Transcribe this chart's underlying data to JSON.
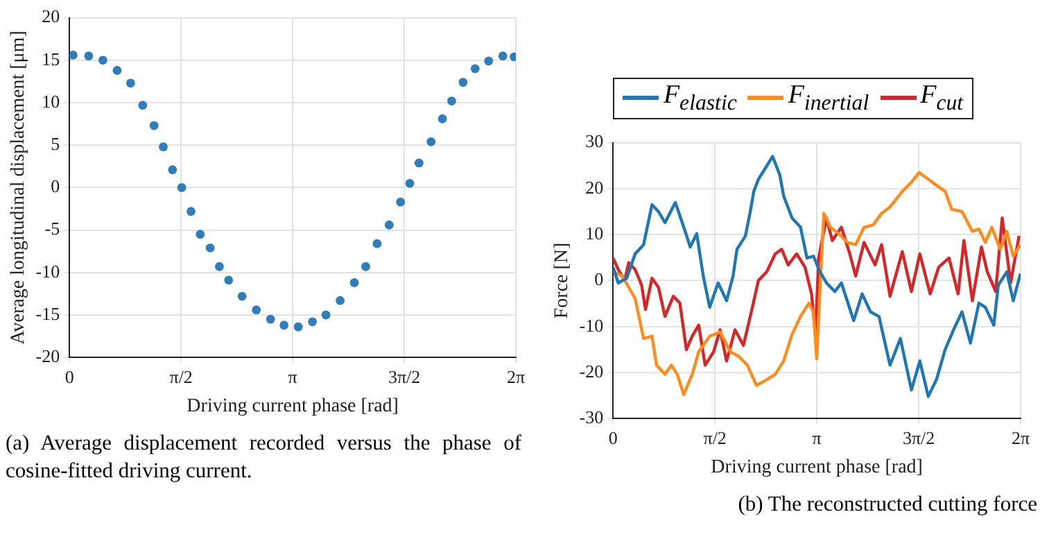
{
  "chart_data": [
    {
      "type": "scatter",
      "xlabel": "Driving current phase [rad]",
      "ylabel": "Average longitudinal displacement [μm]",
      "color": "#2e7ebc",
      "marker": "circle",
      "grid": true,
      "xlim": [
        0,
        6.2832
      ],
      "xticks": [
        0,
        {
          "value": 1.5708,
          "label": "π/2"
        },
        {
          "value": 3.1416,
          "label": "π"
        },
        {
          "value": 4.7124,
          "label": "3π/2"
        },
        {
          "value": 6.2832,
          "label": "2π"
        }
      ],
      "ylim": [
        -20,
        20
      ],
      "yticks": [
        -20,
        -15,
        -10,
        -5,
        0,
        5,
        10,
        15,
        20
      ],
      "x": [
        0.05,
        0.27,
        0.47,
        0.67,
        0.86,
        1.03,
        1.19,
        1.32,
        1.45,
        1.58,
        1.71,
        1.84,
        1.98,
        2.11,
        2.24,
        2.43,
        2.63,
        2.83,
        3.02,
        3.22,
        3.42,
        3.61,
        3.81,
        4.01,
        4.17,
        4.33,
        4.5,
        4.66,
        4.79,
        4.92,
        5.09,
        5.25,
        5.38,
        5.54,
        5.71,
        5.9,
        6.1,
        6.26
      ],
      "values": [
        15.6,
        15.5,
        15.0,
        13.8,
        12.3,
        9.7,
        7.3,
        4.8,
        2.1,
        0,
        -2.8,
        -5.5,
        -7.1,
        -9.3,
        -10.9,
        -12.8,
        -14.4,
        -15.5,
        -16.2,
        -16.4,
        -15.8,
        -15.0,
        -13.3,
        -11.2,
        -9.3,
        -6.6,
        -4.4,
        -1.7,
        0.5,
        2.9,
        5.4,
        8.1,
        10.2,
        12.4,
        14.0,
        14.9,
        15.5,
        15.4
      ],
      "annotations": [
        "(a) Average displacement recorded versus the phase of cosine-fitted driving current."
      ]
    },
    {
      "type": "line",
      "xlabel": "Driving current phase [rad]",
      "ylabel": "Force [N]",
      "grid": true,
      "legend": "top",
      "marker": "none",
      "xlim": [
        0,
        6.2832
      ],
      "xticks": [
        0,
        {
          "value": 1.5708,
          "label": "π/2"
        },
        {
          "value": 3.1416,
          "label": "π"
        },
        {
          "value": 4.7124,
          "label": "3π/2"
        },
        {
          "value": 6.2832,
          "label": "2π"
        }
      ],
      "ylim": [
        -30,
        30
      ],
      "yticks": [
        -30,
        -20,
        -10,
        0,
        10,
        20,
        30
      ],
      "series": [
        {
          "name": "F$_{elastic}$",
          "color": "#1f77b4",
          "x": [
            0,
            0.08,
            0.21,
            0.34,
            0.47,
            0.6,
            0.7,
            0.8,
            0.96,
            1.09,
            1.19,
            1.29,
            1.39,
            1.49,
            1.62,
            1.75,
            1.85,
            1.91,
            2.04,
            2.11,
            2.17,
            2.24,
            2.46,
            2.57,
            2.63,
            2.76,
            2.89,
            2.99,
            3.09,
            3.19,
            3.29,
            3.42,
            3.52,
            3.71,
            3.84,
            3.97,
            4.1,
            4.27,
            4.43,
            4.6,
            4.73,
            4.86,
            4.99,
            5.12,
            5.25,
            5.38,
            5.51,
            5.64,
            5.74,
            5.87,
            5.94,
            6.07,
            6.17,
            6.28
          ],
          "values": [
            2.9,
            -0.5,
            0.5,
            5.8,
            7.8,
            16.5,
            15,
            12.6,
            17,
            11.6,
            7.3,
            10.2,
            1,
            -5.8,
            -0.5,
            -4.4,
            1,
            6.8,
            9.7,
            14.6,
            19.4,
            22,
            27,
            23,
            18.4,
            13.6,
            11.6,
            4.9,
            5.3,
            1.9,
            -0.5,
            -2.4,
            -0.5,
            -8.7,
            -2.9,
            -6.8,
            -7.8,
            -18.4,
            -12.6,
            -23.8,
            -17.5,
            -25.2,
            -21.4,
            -15,
            -10.7,
            -6.8,
            -13.6,
            -4.9,
            -5.8,
            -9.7,
            -1,
            1.9,
            -4.4,
            1.5
          ]
        },
        {
          "name": "F$_{inertial}$",
          "color": "#ff8c1a",
          "x": [
            0,
            0.14,
            0.34,
            0.47,
            0.6,
            0.67,
            0.8,
            0.9,
            0.99,
            1.09,
            1.22,
            1.32,
            1.49,
            1.65,
            1.81,
            1.94,
            2.07,
            2.21,
            2.34,
            2.5,
            2.63,
            2.76,
            2.89,
            3.02,
            3.09,
            3.14,
            3.19,
            3.25,
            3.35,
            3.48,
            3.61,
            3.74,
            3.87,
            4.01,
            4.14,
            4.27,
            4.46,
            4.6,
            4.72,
            4.92,
            5.12,
            5.22,
            5.38,
            5.54,
            5.64,
            5.74,
            5.84,
            5.97,
            6.07,
            6.17,
            6.28
          ],
          "values": [
            1.9,
            1,
            -3.9,
            -12.6,
            -12.1,
            -18.4,
            -20.4,
            -18.4,
            -20.4,
            -24.8,
            -20.4,
            -15.5,
            -12.1,
            -11.2,
            -15.5,
            -16.5,
            -18.4,
            -22.8,
            -21.8,
            -20.4,
            -17.5,
            -11.7,
            -7.8,
            -4.9,
            -6.8,
            -17,
            -1.9,
            14.6,
            11.6,
            10.2,
            8.3,
            7.8,
            11.6,
            12.1,
            14.6,
            16,
            19.4,
            21.4,
            23.5,
            21.4,
            19.4,
            15.5,
            15,
            10.7,
            11.2,
            8.3,
            11.6,
            6.8,
            10.7,
            5.3,
            7.8
          ]
        },
        {
          "name": "F$_{cut}$",
          "color": "#d62728",
          "x": [
            0,
            0.08,
            0.18,
            0.24,
            0.34,
            0.44,
            0.5,
            0.6,
            0.7,
            0.8,
            0.93,
            1.03,
            1.13,
            1.22,
            1.32,
            1.42,
            1.55,
            1.65,
            1.75,
            1.88,
            2.01,
            2.14,
            2.24,
            2.37,
            2.5,
            2.6,
            2.7,
            2.83,
            2.96,
            3.06,
            3.12,
            3.17,
            3.29,
            3.38,
            3.52,
            3.65,
            3.74,
            3.87,
            4.04,
            4.14,
            4.27,
            4.46,
            4.6,
            4.73,
            4.89,
            5.02,
            5.18,
            5.32,
            5.41,
            5.54,
            5.68,
            5.77,
            5.9,
            6,
            6.13,
            6.26
          ],
          "values": [
            4.9,
            2.4,
            0,
            3.9,
            2.4,
            -1,
            -6.3,
            0.5,
            -1.5,
            -7.8,
            -3.4,
            -4.9,
            -15,
            -12.1,
            -9.7,
            -18.4,
            -15.5,
            -10.7,
            -17.5,
            -10.7,
            -14.1,
            -6.3,
            0,
            1.9,
            5.8,
            6.8,
            3.4,
            5.8,
            2.9,
            -2.9,
            -11.7,
            4.9,
            13.6,
            8.7,
            11.6,
            5.8,
            1,
            8.3,
            3.4,
            7.8,
            -3.4,
            6.3,
            -2.4,
            5.8,
            -2.9,
            2.9,
            4.9,
            -2.9,
            8.7,
            -4.4,
            7.3,
            1.9,
            -2.4,
            13.6,
            -0.5,
            9.7
          ]
        }
      ],
      "annotations": [
        "(b) The reconstructed cutting force"
      ]
    }
  ]
}
